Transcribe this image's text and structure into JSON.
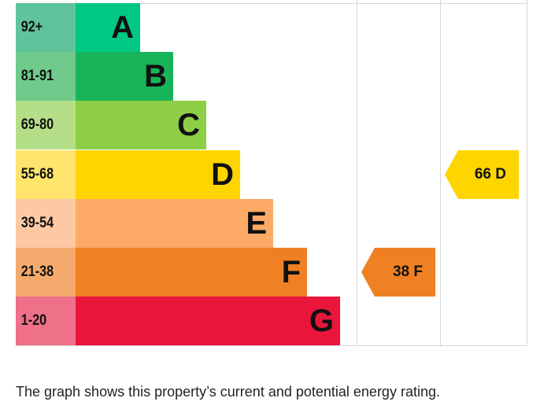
{
  "chart_data": {
    "type": "bar",
    "bands": [
      {
        "range": "92+",
        "letter": "A",
        "color": "#00c781",
        "label_color": "#5fc49b"
      },
      {
        "range": "81-91",
        "letter": "B",
        "color": "#19b459",
        "label_color": "#6fca8c"
      },
      {
        "range": "69-80",
        "letter": "C",
        "color": "#8dce46",
        "label_color": "#b5de88"
      },
      {
        "range": "55-68",
        "letter": "D",
        "color": "#ffd500",
        "label_color": "#ffe46e"
      },
      {
        "range": "39-54",
        "letter": "E",
        "color": "#fcaa65",
        "label_color": "#fdc9a2"
      },
      {
        "range": "21-38",
        "letter": "F",
        "color": "#ef8023",
        "label_color": "#f4aa6c"
      },
      {
        "range": "1-20",
        "letter": "G",
        "color": "#e9153b",
        "label_color": "#ee7089"
      }
    ],
    "current": {
      "score": 38,
      "letter": "F",
      "text": "38 F",
      "color": "#ef8023"
    },
    "potential": {
      "score": 66,
      "letter": "D",
      "text": "66 D",
      "color": "#ffd500"
    }
  },
  "caption": "The graph shows this property’s current and potential energy rating."
}
